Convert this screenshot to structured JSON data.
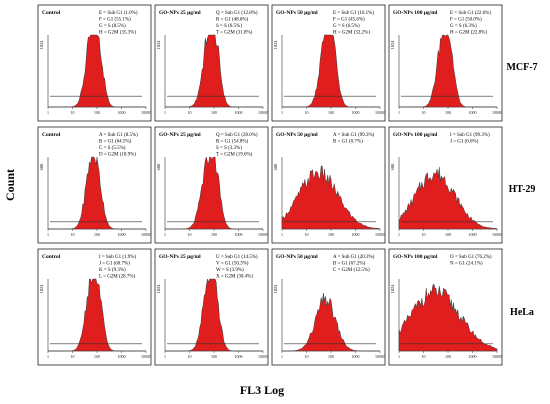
{
  "figure": {
    "y_label": "Count",
    "x_label": "FL3 Log",
    "tick_labels": [
      "1",
      "10",
      "100",
      "1000",
      "10000"
    ],
    "fill_color": "#e01e1e",
    "outline_color": "#3a3a3a",
    "gate_color": "#333333"
  },
  "chart_data": [
    {
      "type": "area",
      "cell_line": "MCF-7",
      "title": "Control",
      "ytick_max": "1024",
      "x": [
        1,
        10,
        100,
        1000,
        10000
      ],
      "peaks": [
        {
          "x": 60,
          "height": 0.95,
          "w": 0.06
        },
        {
          "x": 120,
          "height": 0.55,
          "w": 0.05
        }
      ],
      "x_scale": "log",
      "gate_level": 0.15,
      "legend": [
        {
          "key": "E",
          "phase": "Sub G1",
          "pct": "(1.0%)"
        },
        {
          "key": "F",
          "phase": "G1",
          "pct": "(55.1%)"
        },
        {
          "key": "G",
          "phase": "S",
          "pct": "(8.5%)"
        },
        {
          "key": "H",
          "phase": "G2M",
          "pct": "(35.3%)"
        }
      ]
    },
    {
      "type": "area",
      "cell_line": "MCF-7",
      "title": "GO-NPs 25 μg/ml",
      "ytick_max": "1024",
      "x": [
        1,
        10,
        100,
        1000,
        10000
      ],
      "peaks": [
        {
          "x": 60,
          "height": 0.92,
          "w": 0.06
        },
        {
          "x": 120,
          "height": 0.58,
          "w": 0.05
        }
      ],
      "x_scale": "log",
      "gate_level": 0.15,
      "legend": [
        {
          "key": "Q",
          "phase": "Sub G1",
          "pct": "(12.8%)"
        },
        {
          "key": "R",
          "phase": "G1",
          "pct": "(48.6%)"
        },
        {
          "key": "S",
          "phase": "S",
          "pct": "(6.5%)"
        },
        {
          "key": "T",
          "phase": "G2M",
          "pct": "(31.8%)"
        }
      ]
    },
    {
      "type": "area",
      "cell_line": "MCF-7",
      "title": "GO-NPs 50 μg/ml",
      "ytick_max": "1024",
      "x": [
        1,
        10,
        100,
        1000,
        10000
      ],
      "peaks": [
        {
          "x": 60,
          "height": 0.9,
          "w": 0.06
        },
        {
          "x": 120,
          "height": 0.6,
          "w": 0.05
        }
      ],
      "x_scale": "log",
      "gate_level": 0.15,
      "legend": [
        {
          "key": "E",
          "phase": "Sub G1",
          "pct": "(16.1%)"
        },
        {
          "key": "F",
          "phase": "G1",
          "pct": "(45.6%)"
        },
        {
          "key": "G",
          "phase": "S",
          "pct": "(6.5%)"
        },
        {
          "key": "H",
          "phase": "G2M",
          "pct": "(32.2%)"
        }
      ]
    },
    {
      "type": "area",
      "cell_line": "MCF-7",
      "title": "GO-NPs 100 μg/ml",
      "ytick_max": "1024",
      "x": [
        1,
        10,
        100,
        1000,
        10000
      ],
      "peaks": [
        {
          "x": 60,
          "height": 0.88,
          "w": 0.06
        },
        {
          "x": 120,
          "height": 0.55,
          "w": 0.05
        }
      ],
      "x_scale": "log",
      "gate_level": 0.15,
      "legend": [
        {
          "key": "E",
          "phase": "Sub G1",
          "pct": "(22.6%)"
        },
        {
          "key": "F",
          "phase": "G1",
          "pct": "(50.0%)"
        },
        {
          "key": "G",
          "phase": "S",
          "pct": "(6.3%)"
        },
        {
          "key": "H",
          "phase": "G2M",
          "pct": "(22.8%)"
        }
      ]
    },
    {
      "type": "area",
      "cell_line": "HT-29",
      "title": "Control",
      "ytick_max": "608",
      "x": [
        1,
        10,
        100,
        1000,
        10000
      ],
      "peaks": [
        {
          "x": 60,
          "height": 0.92,
          "w": 0.06
        },
        {
          "x": 120,
          "height": 0.35,
          "w": 0.05
        }
      ],
      "x_scale": "log",
      "gate_level": 0.1,
      "legend": [
        {
          "key": "A",
          "phase": "Sub G1",
          "pct": "(8.5%)"
        },
        {
          "key": "B",
          "phase": "G1",
          "pct": "(64.5%)"
        },
        {
          "key": "C",
          "phase": "S",
          "pct": "(5.5%)"
        },
        {
          "key": "D",
          "phase": "G2M",
          "pct": "(18.9%)"
        }
      ]
    },
    {
      "type": "area",
      "cell_line": "HT-29",
      "title": "GO-NPs 25 μg/ml",
      "ytick_max": "608",
      "x": [
        1,
        10,
        100,
        1000,
        10000
      ],
      "peaks": [
        {
          "x": 60,
          "height": 0.92,
          "w": 0.07
        },
        {
          "x": 120,
          "height": 0.4,
          "w": 0.05
        }
      ],
      "x_scale": "log",
      "gate_level": 0.1,
      "legend": [
        {
          "key": "Q",
          "phase": "Sub G1",
          "pct": "(20.0%)"
        },
        {
          "key": "R",
          "phase": "G1",
          "pct": "(54.8%)"
        },
        {
          "key": "S",
          "phase": "S",
          "pct": "(3.3%)"
        },
        {
          "key": "T",
          "phase": "G2M",
          "pct": "(19.6%)"
        }
      ]
    },
    {
      "type": "area",
      "cell_line": "HT-29",
      "title": "GO-NPs 50 μg/ml",
      "ytick_max": "608",
      "x": [
        1,
        10,
        100,
        1000,
        10000
      ],
      "peaks": [
        {
          "x": 30,
          "height": 0.78,
          "w": 0.2
        }
      ],
      "x_scale": "log",
      "gate_level": 0.1,
      "legend": [
        {
          "key": "A",
          "phase": "Sub G1",
          "pct": "(99.3%)"
        },
        {
          "key": "B",
          "phase": "G1",
          "pct": "(0.7%)"
        }
      ]
    },
    {
      "type": "area",
      "cell_line": "HT-29",
      "title": "GO-NPs 100 μg/ml",
      "ytick_max": "608",
      "x": [
        1,
        10,
        100,
        1000,
        10000
      ],
      "peaks": [
        {
          "x": 30,
          "height": 0.78,
          "w": 0.2
        }
      ],
      "x_scale": "log",
      "gate_level": 0.1,
      "legend": [
        {
          "key": "I",
          "phase": "Sub G1",
          "pct": "(99.3%)"
        },
        {
          "key": "J",
          "phase": "G1",
          "pct": "(0.6%)"
        }
      ]
    },
    {
      "type": "area",
      "cell_line": "HeLa",
      "title": "Control",
      "ytick_max": "1024",
      "x": [
        1,
        10,
        100,
        1000,
        10000
      ],
      "peaks": [
        {
          "x": 60,
          "height": 0.95,
          "w": 0.06
        },
        {
          "x": 120,
          "height": 0.45,
          "w": 0.05
        }
      ],
      "x_scale": "log",
      "gate_level": 0.1,
      "legend": [
        {
          "key": "I",
          "phase": "Sub G1",
          "pct": "(1.9%)"
        },
        {
          "key": "J",
          "phase": "G1",
          "pct": "(60.7%)"
        },
        {
          "key": "K",
          "phase": "S",
          "pct": "(9.3%)"
        },
        {
          "key": "L",
          "phase": "G2M",
          "pct": "(28.7%)"
        }
      ]
    },
    {
      "type": "area",
      "cell_line": "HeLa",
      "title": "GO-NPs 25 μg/ml",
      "ytick_max": "1024",
      "x": [
        1,
        10,
        100,
        1000,
        10000
      ],
      "peaks": [
        {
          "x": 60,
          "height": 0.92,
          "w": 0.06
        },
        {
          "x": 120,
          "height": 0.45,
          "w": 0.05
        }
      ],
      "x_scale": "log",
      "gate_level": 0.1,
      "legend": [
        {
          "key": "U",
          "phase": "Sub G1",
          "pct": "(14.5%)"
        },
        {
          "key": "V",
          "phase": "G1",
          "pct": "(50.3%)"
        },
        {
          "key": "W",
          "phase": "S",
          "pct": "(3.9%)"
        },
        {
          "key": "X",
          "phase": "G2M",
          "pct": "(30.4%)"
        }
      ]
    },
    {
      "type": "area",
      "cell_line": "HeLa",
      "title": "GO-NPs 50 μg/ml",
      "ytick_max": "1024",
      "x": [
        1,
        10,
        100,
        1000,
        10000
      ],
      "peaks": [
        {
          "x": 60,
          "height": 0.72,
          "w": 0.1
        }
      ],
      "x_scale": "log",
      "gate_level": 0.1,
      "legend": [
        {
          "key": "A",
          "phase": "Sub G1",
          "pct": "(20.3%)"
        },
        {
          "key": "B",
          "phase": "G1",
          "pct": "(67.2%)"
        },
        {
          "key": "C",
          "phase": "G2M",
          "pct": "(12.5%)"
        }
      ]
    },
    {
      "type": "area",
      "cell_line": "HeLa",
      "title": "GO-NPs 100 μg/ml",
      "ytick_max": "1024",
      "x": [
        1,
        10,
        100,
        1000,
        10000
      ],
      "peaks": [
        {
          "x": 30,
          "height": 0.82,
          "w": 0.25
        }
      ],
      "x_scale": "log",
      "gate_level": 0.1,
      "legend": [
        {
          "key": "O",
          "phase": "Sub G1",
          "pct": "(76.2%)"
        },
        {
          "key": "N",
          "phase": "G1",
          "pct": "(24.1%)"
        }
      ]
    }
  ]
}
